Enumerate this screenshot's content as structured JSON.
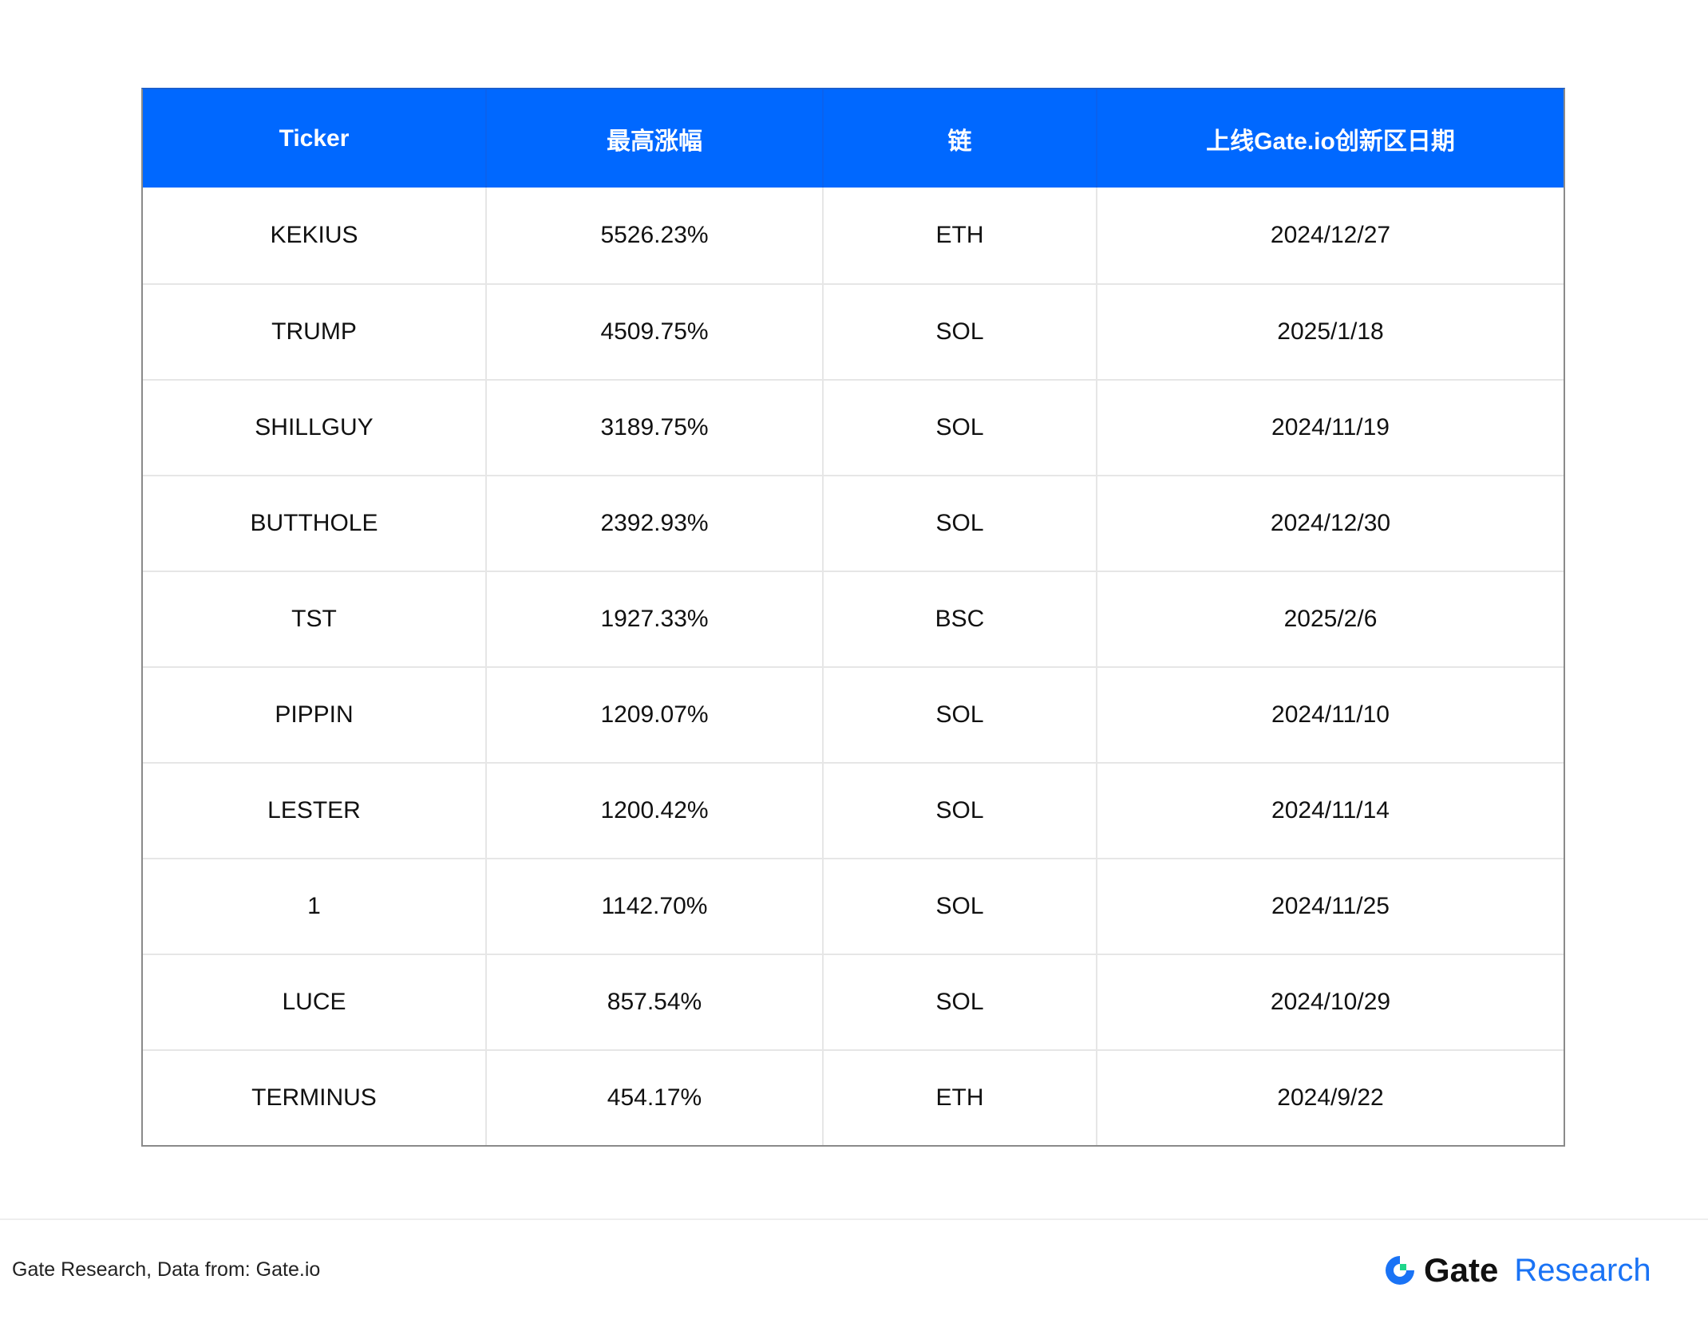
{
  "table": {
    "headers": [
      "Ticker",
      "最高涨幅",
      "链",
      "上线Gate.io创新区日期"
    ],
    "rows": [
      [
        "KEKIUS",
        "5526.23%",
        "ETH",
        "2024/12/27"
      ],
      [
        "TRUMP",
        "4509.75%",
        "SOL",
        "2025/1/18"
      ],
      [
        "SHILLGUY",
        "3189.75%",
        "SOL",
        "2024/11/19"
      ],
      [
        "BUTTHOLE",
        "2392.93%",
        "SOL",
        "2024/12/30"
      ],
      [
        "TST",
        "1927.33%",
        "BSC",
        "2025/2/6"
      ],
      [
        "PIPPIN",
        "1209.07%",
        "SOL",
        "2024/11/10"
      ],
      [
        "LESTER",
        "1200.42%",
        "SOL",
        "2024/11/14"
      ],
      [
        "1",
        "1142.70%",
        "SOL",
        "2024/11/25"
      ],
      [
        "LUCE",
        "857.54%",
        "SOL",
        "2024/10/29"
      ],
      [
        "TERMINUS",
        "454.17%",
        "ETH",
        "2024/9/22"
      ]
    ]
  },
  "footer": {
    "source": "Gate Research, Data from: Gate.io",
    "logo_brand": "Gate",
    "logo_suffix": "Research"
  },
  "colors": {
    "header_bg": "#0068ff",
    "logo_blue": "#1a73f5",
    "logo_green": "#1fd68a"
  }
}
